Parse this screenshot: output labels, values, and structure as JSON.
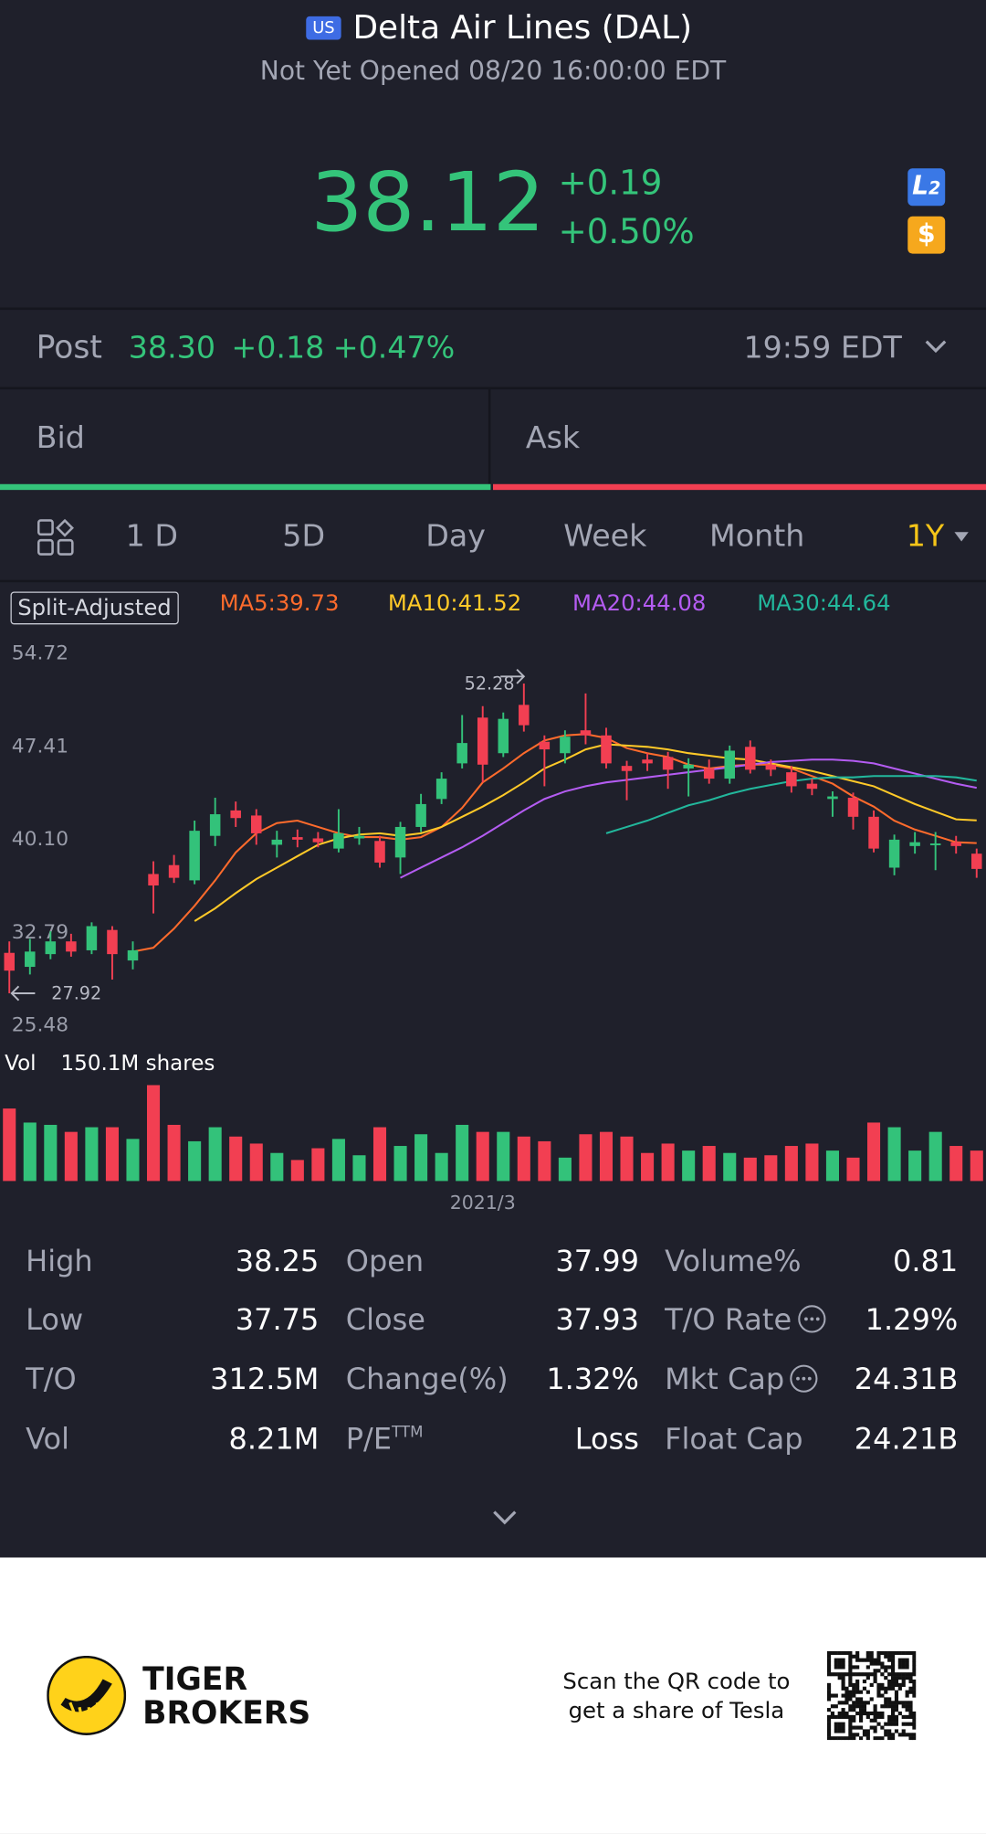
{
  "header": {
    "badge": "US",
    "title": "Delta Air Lines (DAL)",
    "status": "Not Yet Opened 08/20 16:00:00 EDT"
  },
  "quote": {
    "price": "38.12",
    "change": "+0.19",
    "change_pct": "+0.50%",
    "icons": [
      "L",
      "2",
      "$"
    ]
  },
  "post": {
    "label": "Post",
    "price": "38.30",
    "change": "+0.18",
    "change_pct": "+0.47%",
    "time": "19:59 EDT"
  },
  "bid_ask": {
    "bid": "Bid",
    "ask": "Ask"
  },
  "tabs": [
    "1 D",
    "5D",
    "Day",
    "Week",
    "Month",
    "1Y"
  ],
  "chart_data": {
    "type": "candlestick",
    "adjust_label": "Split-Adjusted",
    "up_color": "#33c27a",
    "down_color": "#f23f52",
    "ylim": [
      25.48,
      54.72
    ],
    "yticks": [
      54.72,
      47.41,
      {
        "value": 40.1,
        "label": "40.10"
      },
      32.79,
      25.48
    ],
    "categories": [
      null,
      null,
      null,
      null,
      null,
      null,
      null,
      null,
      null,
      null,
      null,
      null,
      null,
      null,
      null,
      null,
      null,
      null,
      null,
      null,
      null,
      null,
      null,
      "2021/3",
      null,
      null,
      null,
      null,
      null,
      null,
      null,
      null,
      null,
      null,
      null,
      null,
      null,
      null,
      null,
      null,
      null,
      null,
      null,
      null,
      null,
      null,
      null,
      null
    ],
    "open": [
      31.1,
      30.0,
      31.0,
      32.0,
      31.3,
      32.9,
      30.5,
      37.3,
      38.0,
      36.8,
      40.3,
      42.3,
      41.9,
      39.6,
      40.2,
      40.1,
      39.3,
      40.1,
      39.9,
      38.6,
      41.0,
      43.2,
      46.0,
      49.6,
      46.8,
      50.6,
      47.7,
      46.8,
      48.6,
      48.2,
      45.8,
      46.3,
      46.5,
      45.6,
      45.6,
      44.8,
      47.3,
      45.9,
      45.3,
      44.4,
      43.2,
      43.3,
      41.8,
      37.8,
      39.5,
      39.6,
      39.8,
      38.9
    ],
    "high": [
      32.0,
      32.2,
      32.8,
      32.6,
      33.5,
      33.2,
      32.0,
      38.3,
      38.8,
      41.5,
      43.3,
      43.0,
      42.4,
      40.7,
      40.8,
      40.6,
      42.4,
      41.0,
      40.3,
      41.4,
      43.6,
      45.3,
      49.8,
      50.5,
      50.0,
      52.28,
      48.2,
      48.6,
      51.5,
      48.8,
      46.2,
      46.8,
      46.9,
      46.4,
      46.3,
      47.4,
      47.8,
      46.3,
      45.8,
      44.8,
      43.8,
      43.7,
      42.3,
      40.4,
      40.6,
      40.6,
      40.3,
      39.3
    ],
    "low": [
      27.92,
      29.4,
      30.6,
      30.8,
      31.0,
      29.0,
      29.8,
      34.2,
      36.6,
      36.5,
      39.5,
      41.0,
      39.6,
      38.6,
      39.4,
      39.4,
      39.0,
      39.6,
      37.8,
      37.3,
      40.6,
      42.8,
      45.6,
      44.5,
      46.5,
      48.5,
      44.2,
      46.0,
      47.5,
      45.6,
      43.1,
      45.4,
      44.0,
      43.4,
      44.4,
      44.4,
      45.2,
      45.0,
      43.7,
      43.5,
      41.8,
      40.8,
      39.0,
      37.2,
      38.9,
      37.6,
      38.9,
      37.0
    ],
    "close": [
      29.7,
      31.2,
      32.0,
      31.2,
      33.2,
      31.0,
      31.3,
      36.4,
      37.0,
      40.7,
      42.0,
      41.7,
      40.5,
      40.0,
      40.0,
      39.8,
      40.5,
      40.3,
      38.2,
      41.0,
      42.8,
      44.8,
      47.6,
      45.9,
      49.5,
      49.0,
      47.1,
      48.1,
      48.2,
      46.0,
      45.4,
      46.0,
      45.5,
      45.9,
      44.8,
      47.0,
      45.5,
      45.5,
      44.2,
      44.0,
      43.4,
      41.8,
      39.3,
      40.0,
      39.8,
      39.7,
      39.5,
      37.7
    ],
    "annotations": [
      {
        "text": "52.28",
        "value": 52.28,
        "side": "high"
      },
      {
        "text": "27.92",
        "value": 27.92,
        "side": "low"
      }
    ],
    "ma": [
      {
        "name": "MA5:39.73",
        "color": "#ff6b2c",
        "values": [
          null,
          null,
          null,
          null,
          null,
          null,
          31.2,
          31.5,
          33.0,
          34.8,
          36.8,
          39.0,
          40.5,
          41.3,
          41.5,
          41.0,
          40.5,
          40.2,
          40.2,
          40.0,
          40.2,
          41.0,
          42.5,
          44.5,
          45.6,
          46.8,
          47.8,
          48.2,
          48.3,
          48.0,
          47.2,
          46.8,
          46.5,
          45.9,
          45.6,
          45.8,
          45.9,
          45.9,
          45.6,
          45.0,
          44.4,
          43.4,
          42.6,
          41.5,
          40.8,
          40.3,
          39.8,
          39.73
        ]
      },
      {
        "name": "MA10:41.52",
        "color": "#ffc928",
        "values": [
          null,
          null,
          null,
          null,
          null,
          null,
          null,
          null,
          null,
          33.6,
          34.6,
          35.8,
          36.9,
          37.8,
          38.7,
          39.6,
          40.1,
          40.4,
          40.5,
          40.3,
          40.5,
          41.0,
          41.8,
          42.6,
          43.5,
          44.5,
          45.6,
          46.3,
          47.1,
          47.5,
          47.4,
          47.3,
          47.1,
          46.8,
          46.6,
          46.4,
          46.3,
          46.0,
          45.7,
          45.4,
          45.0,
          44.6,
          44.2,
          43.5,
          42.8,
          42.2,
          41.6,
          41.52
        ]
      },
      {
        "name": "MA20:44.08",
        "color": "#b45cf2",
        "values": [
          null,
          null,
          null,
          null,
          null,
          null,
          null,
          null,
          null,
          null,
          null,
          null,
          null,
          null,
          null,
          null,
          null,
          null,
          null,
          37.0,
          37.8,
          38.6,
          39.4,
          40.3,
          41.3,
          42.3,
          43.2,
          43.8,
          44.2,
          44.5,
          44.7,
          44.9,
          45.1,
          45.3,
          45.5,
          45.7,
          45.9,
          46.1,
          46.2,
          46.3,
          46.3,
          46.2,
          46.0,
          45.6,
          45.2,
          44.8,
          44.4,
          44.08
        ]
      },
      {
        "name": "MA30:44.64",
        "color": "#22b79c",
        "values": [
          null,
          null,
          null,
          null,
          null,
          null,
          null,
          null,
          null,
          null,
          null,
          null,
          null,
          null,
          null,
          null,
          null,
          null,
          null,
          null,
          null,
          null,
          null,
          null,
          null,
          null,
          null,
          null,
          null,
          40.5,
          41.0,
          41.5,
          42.1,
          42.7,
          43.1,
          43.6,
          44.0,
          44.3,
          44.6,
          44.8,
          44.9,
          44.9,
          45.0,
          45.0,
          45.0,
          45.0,
          44.9,
          44.64
        ]
      }
    ],
    "volume": {
      "label": "Vol",
      "total_label": "150.1M shares",
      "vlim": [
        0,
        150.1
      ],
      "values": [
        113.5,
        91.5,
        87.9,
        76.9,
        84.2,
        84.2,
        65.9,
        150.1,
        87.9,
        62.2,
        84.2,
        69.6,
        58.6,
        43.9,
        32.9,
        51.3,
        65.9,
        40.3,
        84.2,
        54.9,
        73.2,
        43.9,
        87.9,
        76.9,
        76.9,
        69.6,
        62.2,
        36.6,
        73.2,
        76.9,
        69.6,
        43.9,
        58.6,
        47.6,
        54.9,
        43.9,
        36.6,
        40.3,
        54.9,
        58.6,
        47.6,
        36.6,
        91.5,
        84.2,
        47.6,
        76.9,
        54.9,
        47.6
      ]
    }
  },
  "stats": [
    [
      {
        "label": "High",
        "value": "38.25"
      },
      {
        "label": "Low",
        "value": "37.75"
      },
      {
        "label": "T/O",
        "value": "312.5M"
      },
      {
        "label": "Vol",
        "value": "8.21M"
      }
    ],
    [
      {
        "label": "Open",
        "value": "37.99"
      },
      {
        "label": "Close",
        "value": "37.93"
      },
      {
        "label": "Change(%)",
        "value": "1.32%"
      },
      {
        "label": "P/E",
        "sup": "TTM",
        "value": "Loss"
      }
    ],
    [
      {
        "label": "Volume%",
        "value": "0.81"
      },
      {
        "label": "T/O Rate",
        "info": true,
        "value": "1.29%"
      },
      {
        "label": "Mkt Cap",
        "info": true,
        "value": "24.31B"
      },
      {
        "label": "Float Cap",
        "value": "24.21B"
      }
    ]
  ],
  "footer": {
    "brand": [
      "TIGER",
      "BROKERS"
    ],
    "promo": [
      "Scan the QR code to",
      "get a share of Tesla"
    ]
  }
}
